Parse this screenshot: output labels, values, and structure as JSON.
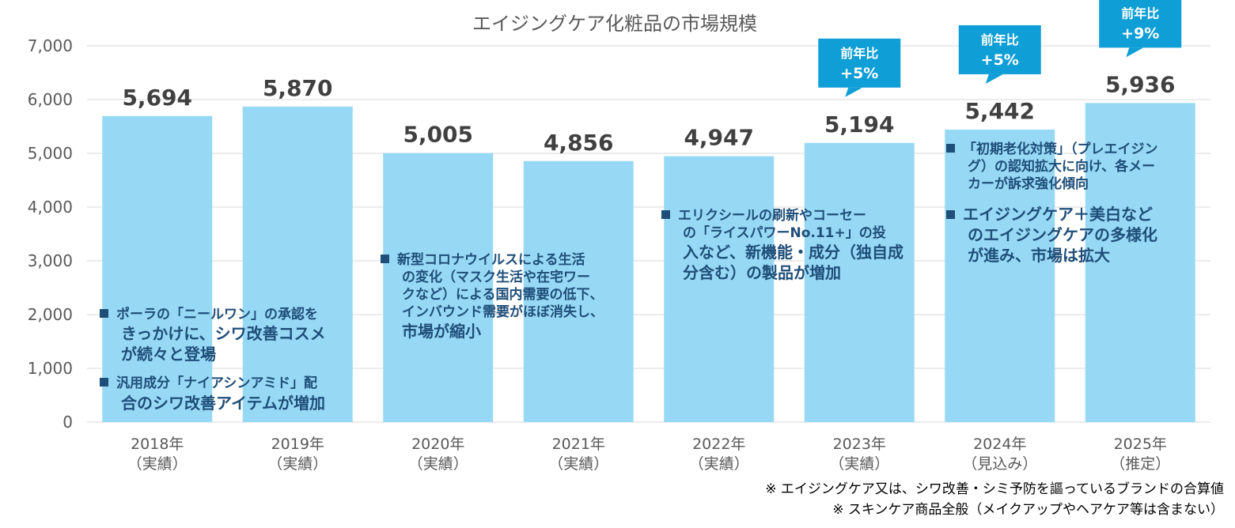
{
  "chart_data": {
    "type": "bar",
    "title": "エイジングケア化粧品の市場規模",
    "categories": [
      "2018年",
      "2019年",
      "2020年",
      "2021年",
      "2022年",
      "2023年",
      "2024年",
      "2025年"
    ],
    "category_notes": [
      "（実績）",
      "（実績）",
      "（実績）",
      "（実績）",
      "（実績）",
      "（実績）",
      "（見込み）",
      "（推定）"
    ],
    "values": [
      5694,
      5870,
      5005,
      4856,
      4947,
      5194,
      5442,
      5936
    ],
    "value_labels": [
      "5,694",
      "5,870",
      "5,005",
      "4,856",
      "4,947",
      "5,194",
      "5,442",
      "5,936"
    ],
    "ylim": [
      0,
      7000
    ],
    "yticks": [
      "0",
      "1,000",
      "2,000",
      "3,000",
      "4,000",
      "5,000",
      "6,000",
      "7,000"
    ],
    "grid": true,
    "bar_color": "#97d9f5",
    "callouts": [
      {
        "category": "2023年",
        "label": "前年比",
        "value": "+5%"
      },
      {
        "category": "2024年",
        "label": "前年比",
        "value": "+5%"
      },
      {
        "category": "2025年",
        "label": "前年比",
        "value": "+9%"
      }
    ],
    "callout_color": "#0f9ed5",
    "annotations": [
      {
        "lines": [
          "ポーラの「ニールワン」の承認を",
          "きっかけに、シワ改善コスメ",
          "が続々と登場"
        ]
      },
      {
        "lines": [
          "汎用成分「ナイアシンアミド」配",
          "合のシワ改善アイテムが増加"
        ]
      },
      {
        "lines": [
          "新型コロナウイルスによる生活",
          "の変化（マスク生活や在宅ワー",
          "クなど）による国内需要の低下、",
          "インバウンド需要がほぼ消失し、",
          "市場が縮小"
        ]
      },
      {
        "lines": [
          "エリクシールの刷新やコーセー",
          "の「ライスパワーNo.11+」の投",
          "入など、新機能・成分（独自成",
          "分含む）の製品が増加"
        ]
      },
      {
        "lines": [
          "「初期老化対策」（プレエイジン",
          "グ）の認知拡大に向け、各メー",
          "カーが訴求強化傾向"
        ]
      },
      {
        "lines": [
          "エイジングケア＋美白など",
          "のエイジングケアの多様化",
          "が進み、市場は拡大"
        ]
      }
    ],
    "annotation_color": "#1f4e79"
  },
  "footnotes": [
    "※ エイジングケア又は、シワ改善・シミ予防を謳っているブランドの合算値",
    "※ スキンケア商品全般（メイクアップやヘアケア等は含まない）"
  ]
}
